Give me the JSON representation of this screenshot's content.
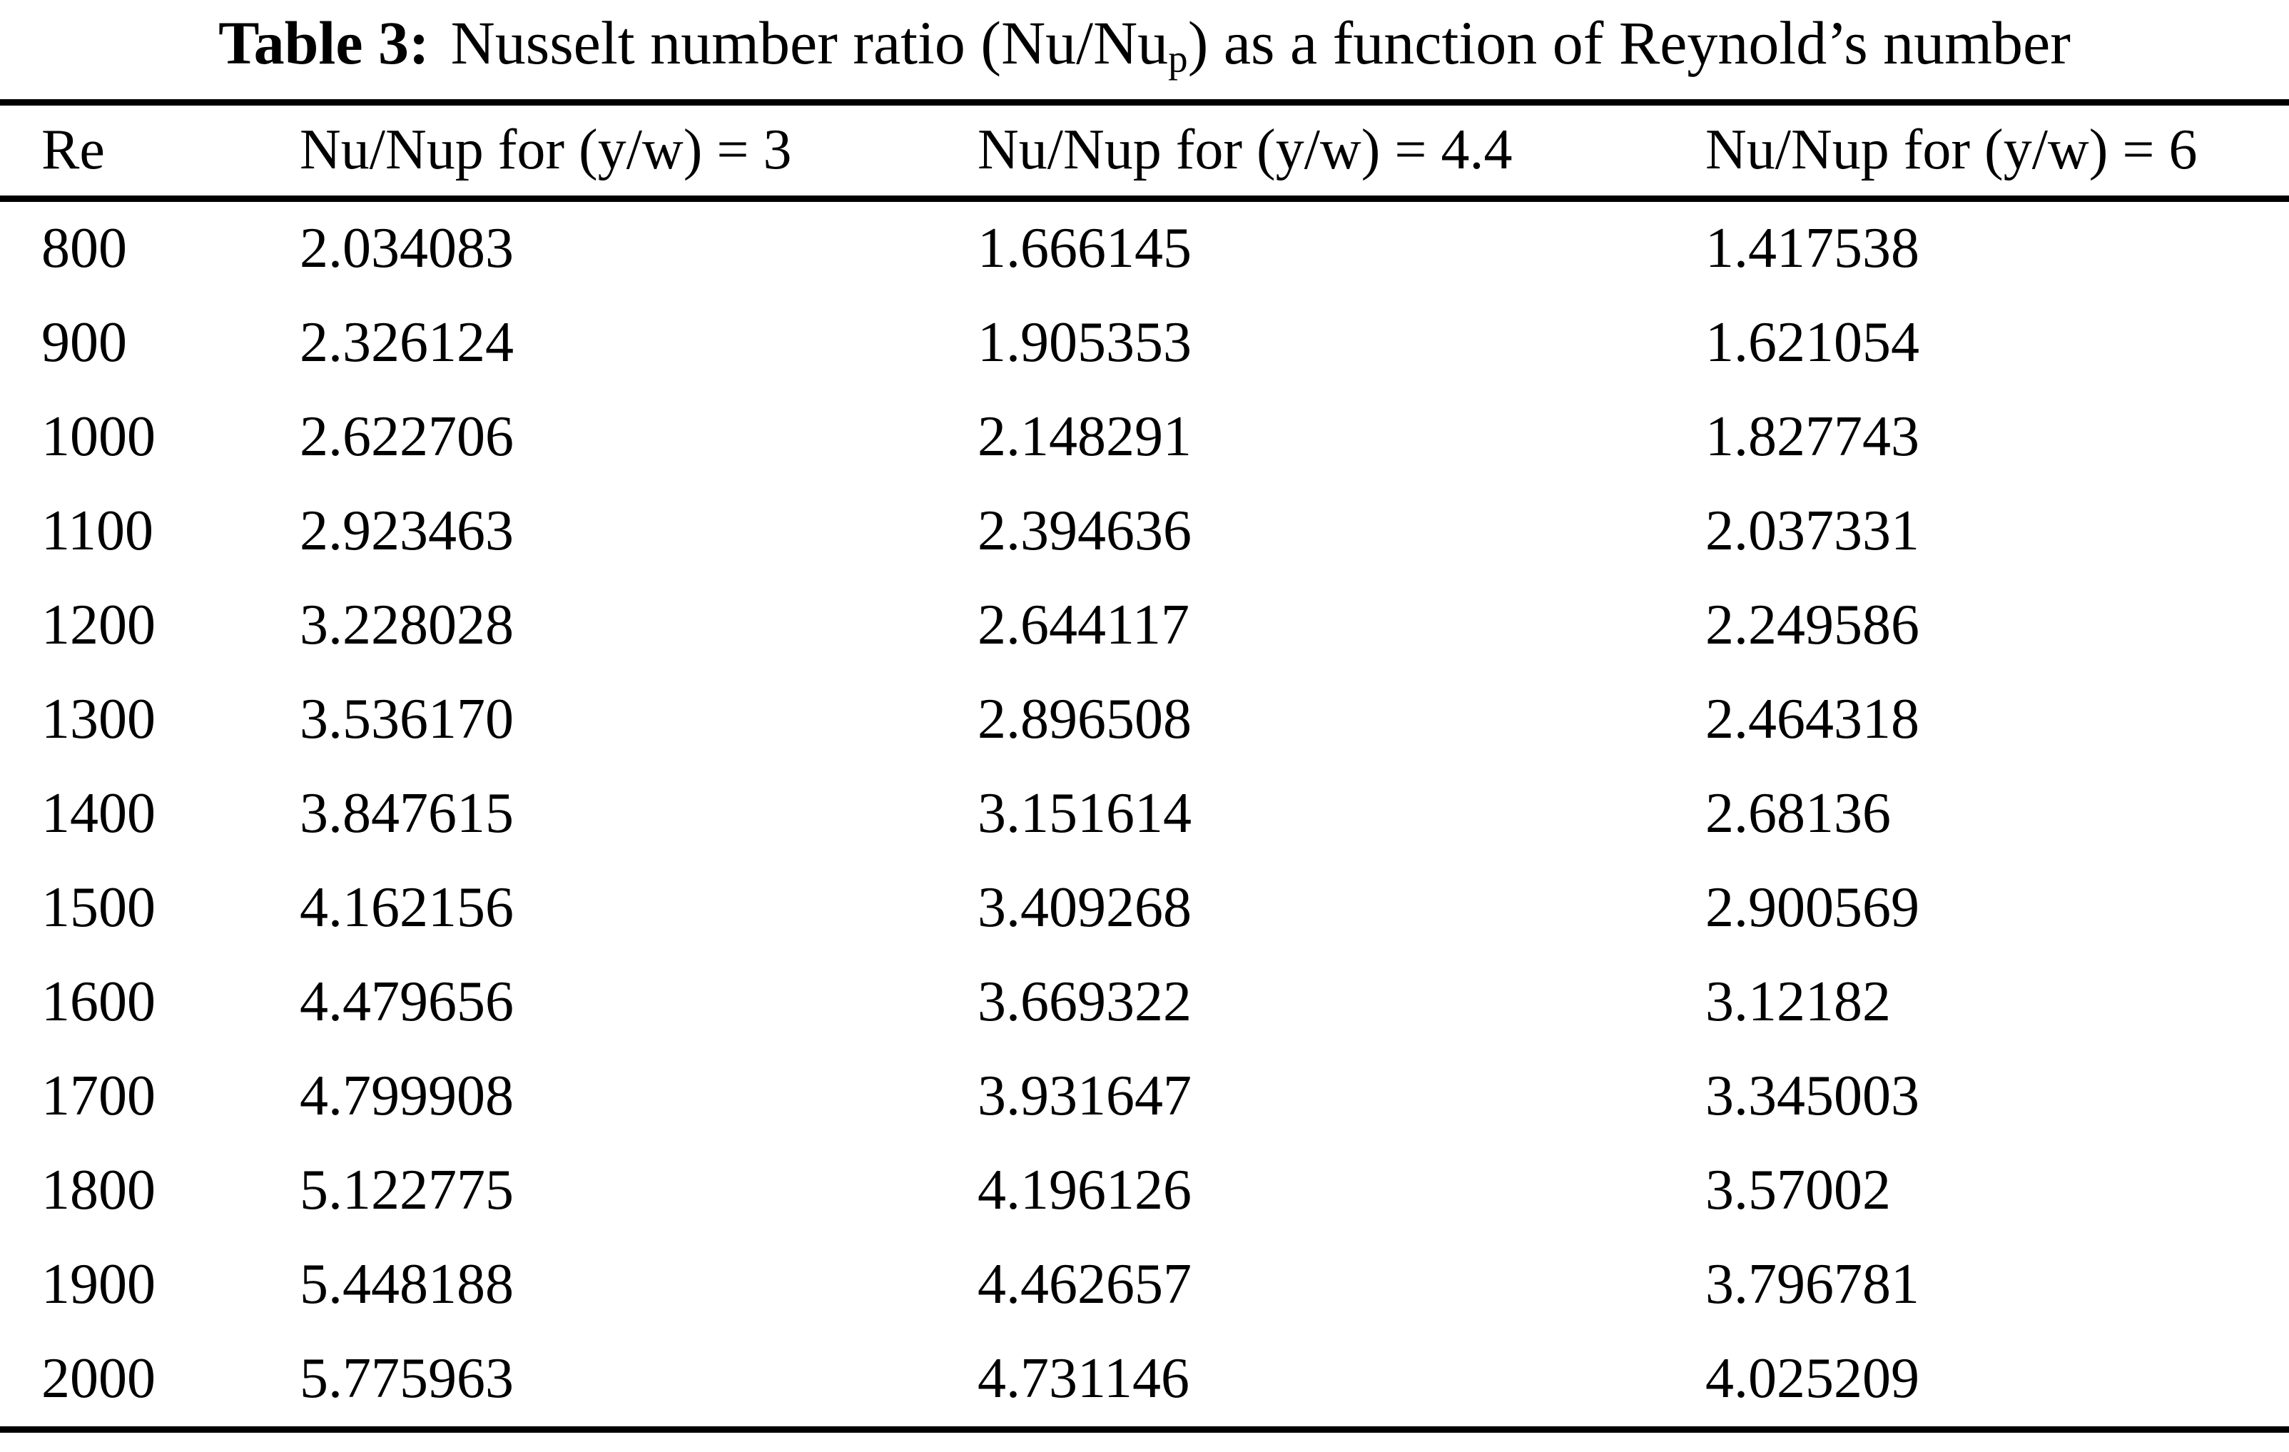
{
  "page": {
    "background_color": "#ffffff",
    "text_color": "#000000"
  },
  "table": {
    "title": {
      "label_bold": "Table 3:",
      "text_before_sub": "Nusselt number ratio (Nu/Nu",
      "subscript": "p",
      "text_after_sub": ") as a function of Reynold’s number"
    },
    "columns": [
      "Re",
      "Nu/Nup for (y/w) = 3",
      "Nu/Nup for (y/w) = 4.4",
      "Nu/Nup for (y/w) = 6"
    ],
    "rows": [
      [
        "800",
        "2.034083",
        "1.666145",
        "1.417538"
      ],
      [
        "900",
        "2.326124",
        "1.905353",
        "1.621054"
      ],
      [
        "1000",
        "2.622706",
        "2.148291",
        "1.827743"
      ],
      [
        "1100",
        "2.923463",
        "2.394636",
        "2.037331"
      ],
      [
        "1200",
        "3.228028",
        "2.644117",
        "2.249586"
      ],
      [
        "1300",
        "3.536170",
        "2.896508",
        "2.464318"
      ],
      [
        "1400",
        "3.847615",
        "3.151614",
        "2.68136"
      ],
      [
        "1500",
        "4.162156",
        "3.409268",
        "2.900569"
      ],
      [
        "1600",
        "4.479656",
        "3.669322",
        "3.12182"
      ],
      [
        "1700",
        "4.799908",
        "3.931647",
        "3.345003"
      ],
      [
        "1800",
        "5.122775",
        "4.196126",
        "3.57002"
      ],
      [
        "1900",
        "5.448188",
        "4.462657",
        "3.796781"
      ],
      [
        "2000",
        "5.775963",
        "4.731146",
        "4.025209"
      ]
    ]
  }
}
